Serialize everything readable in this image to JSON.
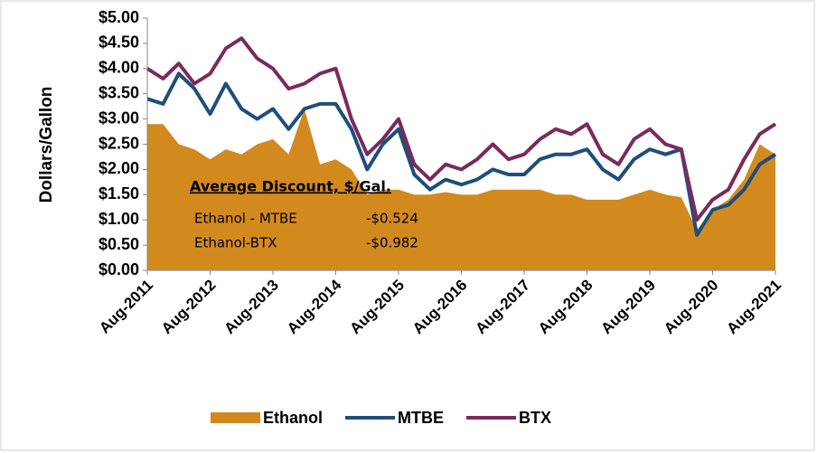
{
  "chart_data": {
    "type": "line",
    "ylabel": "Dollars/Gallon",
    "x": [
      "2011-08",
      "2011-11",
      "2012-02",
      "2012-05",
      "2012-08",
      "2012-11",
      "2013-02",
      "2013-05",
      "2013-08",
      "2013-11",
      "2014-02",
      "2014-05",
      "2014-08",
      "2014-11",
      "2015-02",
      "2015-05",
      "2015-08",
      "2015-11",
      "2016-02",
      "2016-05",
      "2016-08",
      "2016-11",
      "2017-02",
      "2017-05",
      "2017-08",
      "2017-11",
      "2018-02",
      "2018-05",
      "2018-08",
      "2018-11",
      "2019-02",
      "2019-05",
      "2019-08",
      "2019-11",
      "2020-02",
      "2020-05",
      "2020-08",
      "2020-11",
      "2021-02",
      "2021-05",
      "2021-08"
    ],
    "series": [
      {
        "name": "Ethanol",
        "style": "area",
        "color": "#d28a1e",
        "values": [
          2.9,
          2.9,
          2.5,
          2.4,
          2.2,
          2.4,
          2.3,
          2.5,
          2.6,
          2.3,
          3.2,
          2.1,
          2.2,
          2.0,
          1.5,
          1.6,
          1.6,
          1.5,
          1.5,
          1.55,
          1.5,
          1.5,
          1.6,
          1.6,
          1.6,
          1.6,
          1.5,
          1.5,
          1.4,
          1.4,
          1.4,
          1.5,
          1.6,
          1.5,
          1.45,
          0.8,
          1.2,
          1.4,
          1.8,
          2.5,
          2.3
        ]
      },
      {
        "name": "MTBE",
        "style": "line",
        "color": "#1f4e79",
        "values": [
          3.4,
          3.3,
          3.9,
          3.6,
          3.1,
          3.7,
          3.2,
          3.0,
          3.2,
          2.8,
          3.2,
          3.3,
          3.3,
          2.8,
          2.0,
          2.5,
          2.8,
          1.9,
          1.6,
          1.8,
          1.7,
          1.8,
          2.0,
          1.9,
          1.9,
          2.2,
          2.3,
          2.3,
          2.4,
          2.0,
          1.8,
          2.2,
          2.4,
          2.3,
          2.4,
          0.7,
          1.2,
          1.3,
          1.6,
          2.1,
          2.3
        ]
      },
      {
        "name": "BTX",
        "style": "line",
        "color": "#7b2a5c",
        "values": [
          4.0,
          3.8,
          4.1,
          3.7,
          3.9,
          4.4,
          4.6,
          4.2,
          4.0,
          3.6,
          3.7,
          3.9,
          4.0,
          3.0,
          2.3,
          2.6,
          3.0,
          2.1,
          1.8,
          2.1,
          2.0,
          2.2,
          2.5,
          2.2,
          2.3,
          2.6,
          2.8,
          2.7,
          2.9,
          2.3,
          2.1,
          2.6,
          2.8,
          2.5,
          2.4,
          1.0,
          1.4,
          1.6,
          2.2,
          2.7,
          2.9
        ]
      }
    ],
    "ylim": [
      0,
      5
    ],
    "yticks": [
      {
        "value": 0,
        "label": "$0.00"
      },
      {
        "value": 0.5,
        "label": "$0.50"
      },
      {
        "value": 1,
        "label": "$1.00"
      },
      {
        "value": 1.5,
        "label": "$1.50"
      },
      {
        "value": 2,
        "label": "$2.00"
      },
      {
        "value": 2.5,
        "label": "$2.50"
      },
      {
        "value": 3,
        "label": "$3.00"
      },
      {
        "value": 3.5,
        "label": "$3.50"
      },
      {
        "value": 4,
        "label": "$4.00"
      },
      {
        "value": 4.5,
        "label": "$4.50"
      },
      {
        "value": 5,
        "label": "$5.00"
      }
    ],
    "xlim": [
      "2011-08",
      "2021-08"
    ],
    "xticks": [
      {
        "value": "2011-08",
        "label": "Aug-2011"
      },
      {
        "value": "2012-08",
        "label": "Aug-2012"
      },
      {
        "value": "2013-08",
        "label": "Aug-2013"
      },
      {
        "value": "2014-08",
        "label": "Aug-2014"
      },
      {
        "value": "2015-08",
        "label": "Aug-2015"
      },
      {
        "value": "2016-08",
        "label": "Aug-2016"
      },
      {
        "value": "2017-08",
        "label": "Aug-2017"
      },
      {
        "value": "2018-08",
        "label": "Aug-2018"
      },
      {
        "value": "2019-08",
        "label": "Aug-2019"
      },
      {
        "value": "2020-08",
        "label": "Aug-2020"
      },
      {
        "value": "2021-08",
        "label": "Aug-2021"
      }
    ],
    "annotation": {
      "title": "Average Discount, $/Gal.",
      "rows": [
        [
          "Ethanol - MTBE",
          "-$0.524"
        ],
        [
          "Ethanol-BTX",
          "-$0.982"
        ]
      ]
    },
    "legend": "bottom"
  }
}
